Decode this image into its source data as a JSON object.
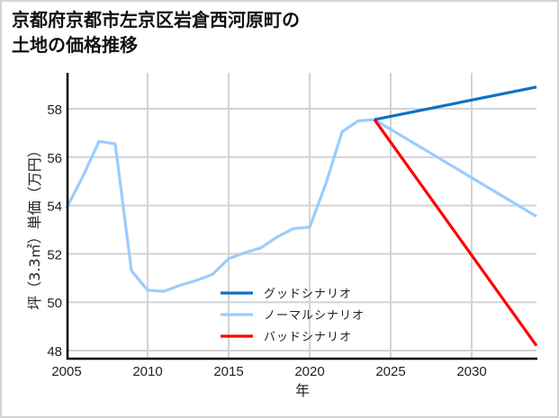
{
  "title": {
    "line1": "京都府京都市左京区岩倉西河原町の",
    "line2": "土地の価格推移"
  },
  "chart_data": {
    "type": "line",
    "title": "京都府京都市左京区岩倉西河原町の土地の価格推移",
    "xlabel": "年",
    "ylabel": "坪（3.3㎡）単価（万円）",
    "xlim": [
      2005,
      2034
    ],
    "ylim": [
      47.7,
      59.5
    ],
    "x_ticks": [
      2005,
      2010,
      2015,
      2020,
      2025,
      2030
    ],
    "y_ticks": [
      48,
      50,
      52,
      54,
      56,
      58
    ],
    "grid": true,
    "legend_position": "lower center (inside plot)",
    "series": [
      {
        "name": "グッドシナリオ",
        "color": "#0a72c6",
        "x": [
          2024,
          2034
        ],
        "values": [
          57.55,
          58.9
        ]
      },
      {
        "name": "ノーマルシナリオ",
        "color": "#99cdff",
        "x": [
          2005,
          2006,
          2007,
          2008,
          2009,
          2010,
          2011,
          2012,
          2013,
          2014,
          2015,
          2016,
          2017,
          2018,
          2019,
          2020,
          2021,
          2022,
          2023,
          2024,
          2034
        ],
        "values": [
          53.9,
          55.2,
          56.65,
          56.55,
          51.3,
          50.5,
          50.45,
          50.7,
          50.9,
          51.15,
          51.8,
          52.05,
          52.25,
          52.7,
          53.05,
          53.1,
          54.9,
          57.05,
          57.5,
          57.55,
          53.55
        ]
      },
      {
        "name": "バッドシナリオ",
        "color": "#ff0000",
        "x": [
          2024,
          2034
        ],
        "values": [
          57.55,
          48.2
        ]
      }
    ]
  },
  "axes": {
    "xlabel": "年",
    "ylabel": "坪（3.3㎡）単価（万円）",
    "x_tick_labels": [
      "2005",
      "2010",
      "2015",
      "2020",
      "2025",
      "2030"
    ],
    "y_tick_labels": [
      "48",
      "50",
      "52",
      "54",
      "56",
      "58"
    ]
  },
  "legend": {
    "items": [
      {
        "label": "グッドシナリオ",
        "color": "#0a72c6"
      },
      {
        "label": "ノーマルシナリオ",
        "color": "#99cdff"
      },
      {
        "label": "バッドシナリオ",
        "color": "#ff0000"
      }
    ]
  }
}
